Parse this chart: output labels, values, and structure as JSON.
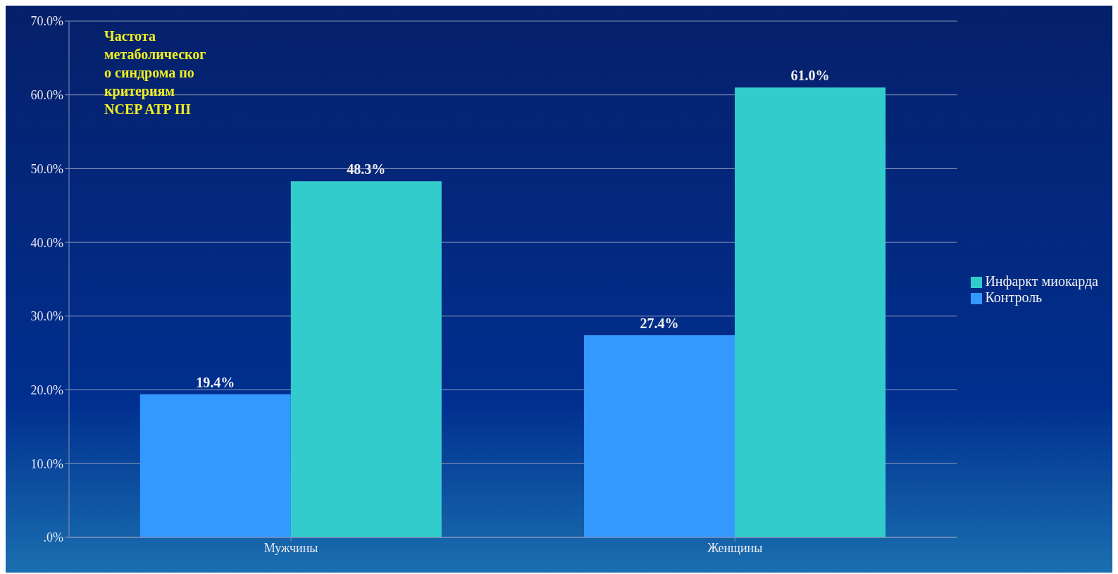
{
  "chart_data": {
    "type": "bar",
    "title": "Частота метаболического синдрома по критериям NCEP ATP III",
    "categories": [
      "Мужчины",
      "Женщины"
    ],
    "series": [
      {
        "name": "Контроль",
        "color": "#3399ff",
        "values": [
          19.4,
          27.4
        ],
        "value_labels": [
          "19.4%",
          "27.4%"
        ]
      },
      {
        "name": "Инфаркт миокарда",
        "color": "#33cccc",
        "values": [
          48.3,
          61.0
        ],
        "value_labels": [
          "48.3%",
          "61.0%"
        ]
      }
    ],
    "ylim": [
      0,
      70
    ],
    "yticks": [
      {
        "value": 0,
        "label": ".0%"
      },
      {
        "value": 10,
        "label": "10.0%"
      },
      {
        "value": 20,
        "label": "20.0%"
      },
      {
        "value": 30,
        "label": "30.0%"
      },
      {
        "value": 40,
        "label": "40.0%"
      },
      {
        "value": 50,
        "label": "50.0%"
      },
      {
        "value": 60,
        "label": "60.0%"
      },
      {
        "value": 70,
        "label": "70.0%"
      }
    ],
    "grid": "y",
    "legend": "right"
  }
}
